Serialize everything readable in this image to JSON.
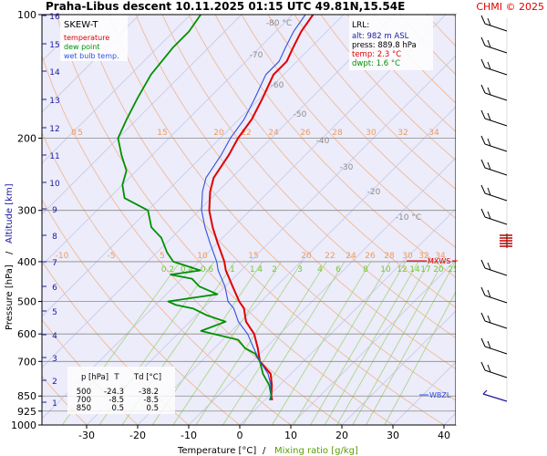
{
  "header": {
    "title": "Praha-Libus   descent   10.11.2025 01:15 UTC  49.81N,15.54E",
    "credit": "CHMI © 2025"
  },
  "legend": {
    "title": "SKEW-T",
    "items": [
      {
        "label": "temperature",
        "color": "#e00000"
      },
      {
        "label": "dew point",
        "color": "#009000"
      },
      {
        "label": "wet bulb temp.",
        "color": "#3050e0"
      }
    ]
  },
  "lrl": {
    "title": "LRL:",
    "lines": [
      {
        "text": "alt: 982 m ASL",
        "color": "#1a1aa0"
      },
      {
        "text": "press: 889.8 hPa",
        "color": "#000000"
      },
      {
        "text": "temp: 2.3 °C",
        "color": "#e00000"
      },
      {
        "text": "dwpt: 1.6 °C",
        "color": "#009000"
      }
    ]
  },
  "table": {
    "headers": [
      "p [hPa]",
      "T",
      "Td [°C]"
    ],
    "rows": [
      [
        "500",
        "-24.3",
        "-38.2"
      ],
      [
        "700",
        "-8.5",
        "-8.5"
      ],
      [
        "850",
        "0.5",
        "0.5"
      ]
    ]
  },
  "markers": {
    "mxws": "MXWS",
    "wbzl": "WBZL"
  },
  "axes": {
    "xlabel": "Temperature [°C]",
    "xsep": "/",
    "xlabel2": "Mixing ratio [g/kg]",
    "ylabel_left": "Pressure [hPa]",
    "ylabel_sep": "/",
    "ylabel_right": "Altitude [km]",
    "xticks": [
      "-30",
      "-20",
      "-10",
      "0",
      "10",
      "20",
      "30",
      "40"
    ],
    "pressure_ticks": [
      "100",
      "200",
      "300",
      "400",
      "500",
      "600",
      "700",
      "850",
      "925",
      "1000"
    ],
    "altitude_ticks": [
      "16",
      "15",
      "14",
      "13",
      "12",
      "11",
      "10",
      "9",
      "8",
      "7",
      "6",
      "5",
      "4",
      "3",
      "2",
      "1"
    ],
    "isotherm_labels": [
      "-80 °C",
      "-70",
      "-60",
      "-50",
      "-40",
      "-30",
      "-20",
      "-10 °C"
    ],
    "theta_labels_200": [
      "0",
      "5",
      "15",
      "20",
      "22",
      "24",
      "26",
      "28",
      "30",
      "32",
      "34"
    ],
    "theta_labels_400": [
      "-10",
      "-5",
      "5",
      "10",
      "15",
      "20",
      "22",
      "24",
      "26",
      "28",
      "30",
      "32",
      "34"
    ],
    "mixing_ratio_labels": [
      "0.2",
      "0.4",
      "0.6",
      "1",
      "1.4",
      "2",
      "3",
      "4",
      "6",
      "8",
      "10",
      "12",
      "14",
      "17",
      "20",
      "25"
    ]
  },
  "chart_data": {
    "type": "line",
    "title": "Praha-Libus   descent   10.11.2025 01:15 UTC  49.81N,15.54E",
    "xlabel": "Temperature [°C]",
    "ylabel": "Pressure [hPa]",
    "xlim": [
      -40,
      45
    ],
    "ylim": [
      1000,
      100
    ],
    "log_y": true,
    "series": [
      {
        "name": "temperature",
        "color": "#e00000",
        "points": [
          [
            870,
            1.5
          ],
          [
            850,
            0.5
          ],
          [
            800,
            -1.5
          ],
          [
            750,
            -4.0
          ],
          [
            700,
            -8.5
          ],
          [
            650,
            -11.5
          ],
          [
            600,
            -15.0
          ],
          [
            560,
            -19.0
          ],
          [
            520,
            -22.0
          ],
          [
            500,
            -24.3
          ],
          [
            460,
            -28.5
          ],
          [
            420,
            -33.0
          ],
          [
            400,
            -35.0
          ],
          [
            360,
            -40.0
          ],
          [
            330,
            -44.0
          ],
          [
            300,
            -48.0
          ],
          [
            270,
            -51.5
          ],
          [
            250,
            -53.5
          ],
          [
            220,
            -55.0
          ],
          [
            200,
            -56.5
          ],
          [
            180,
            -57.5
          ],
          [
            160,
            -59.5
          ],
          [
            140,
            -62.0
          ],
          [
            130,
            -62.0
          ],
          [
            120,
            -63.5
          ],
          [
            110,
            -65.0
          ],
          [
            100,
            -66.0
          ]
        ]
      },
      {
        "name": "dew point",
        "color": "#009000",
        "points": [
          [
            870,
            1.0
          ],
          [
            850,
            0.5
          ],
          [
            800,
            -2.0
          ],
          [
            750,
            -5.5
          ],
          [
            700,
            -8.5
          ],
          [
            670,
            -11.0
          ],
          [
            650,
            -14.0
          ],
          [
            620,
            -17.0
          ],
          [
            590,
            -26.0
          ],
          [
            560,
            -23.0
          ],
          [
            540,
            -28.0
          ],
          [
            520,
            -32.0
          ],
          [
            510,
            -36.0
          ],
          [
            500,
            -38.2
          ],
          [
            480,
            -30.0
          ],
          [
            460,
            -35.0
          ],
          [
            440,
            -38.0
          ],
          [
            430,
            -43.0
          ],
          [
            420,
            -38.0
          ],
          [
            400,
            -45.0
          ],
          [
            380,
            -48.0
          ],
          [
            350,
            -52.0
          ],
          [
            330,
            -56.0
          ],
          [
            300,
            -60.0
          ],
          [
            280,
            -67.0
          ],
          [
            260,
            -70.0
          ],
          [
            240,
            -72.0
          ],
          [
            220,
            -76.0
          ],
          [
            200,
            -80.0
          ],
          [
            180,
            -82.0
          ],
          [
            160,
            -84.0
          ],
          [
            140,
            -86.0
          ],
          [
            120,
            -87.0
          ],
          [
            110,
            -87.0
          ],
          [
            100,
            -88.0
          ]
        ]
      },
      {
        "name": "wet bulb temp.",
        "color": "#3050e0",
        "points": [
          [
            870,
            1.3
          ],
          [
            850,
            0.5
          ],
          [
            800,
            -1.7
          ],
          [
            750,
            -4.5
          ],
          [
            700,
            -8.5
          ],
          [
            650,
            -12.3
          ],
          [
            600,
            -16.3
          ],
          [
            560,
            -20.5
          ],
          [
            520,
            -24.0
          ],
          [
            500,
            -26.5
          ],
          [
            460,
            -30.0
          ],
          [
            420,
            -34.5
          ],
          [
            400,
            -36.5
          ],
          [
            360,
            -41.5
          ],
          [
            330,
            -45.5
          ],
          [
            300,
            -49.5
          ],
          [
            270,
            -53.0
          ],
          [
            250,
            -55.0
          ],
          [
            220,
            -56.5
          ],
          [
            200,
            -58.0
          ],
          [
            180,
            -59.0
          ],
          [
            160,
            -61.0
          ],
          [
            140,
            -63.5
          ],
          [
            130,
            -63.5
          ],
          [
            120,
            -65.0
          ],
          [
            110,
            -66.5
          ],
          [
            100,
            -67.5
          ]
        ]
      }
    ],
    "wind_barbs": "column at right side, 100-870 hPa"
  }
}
